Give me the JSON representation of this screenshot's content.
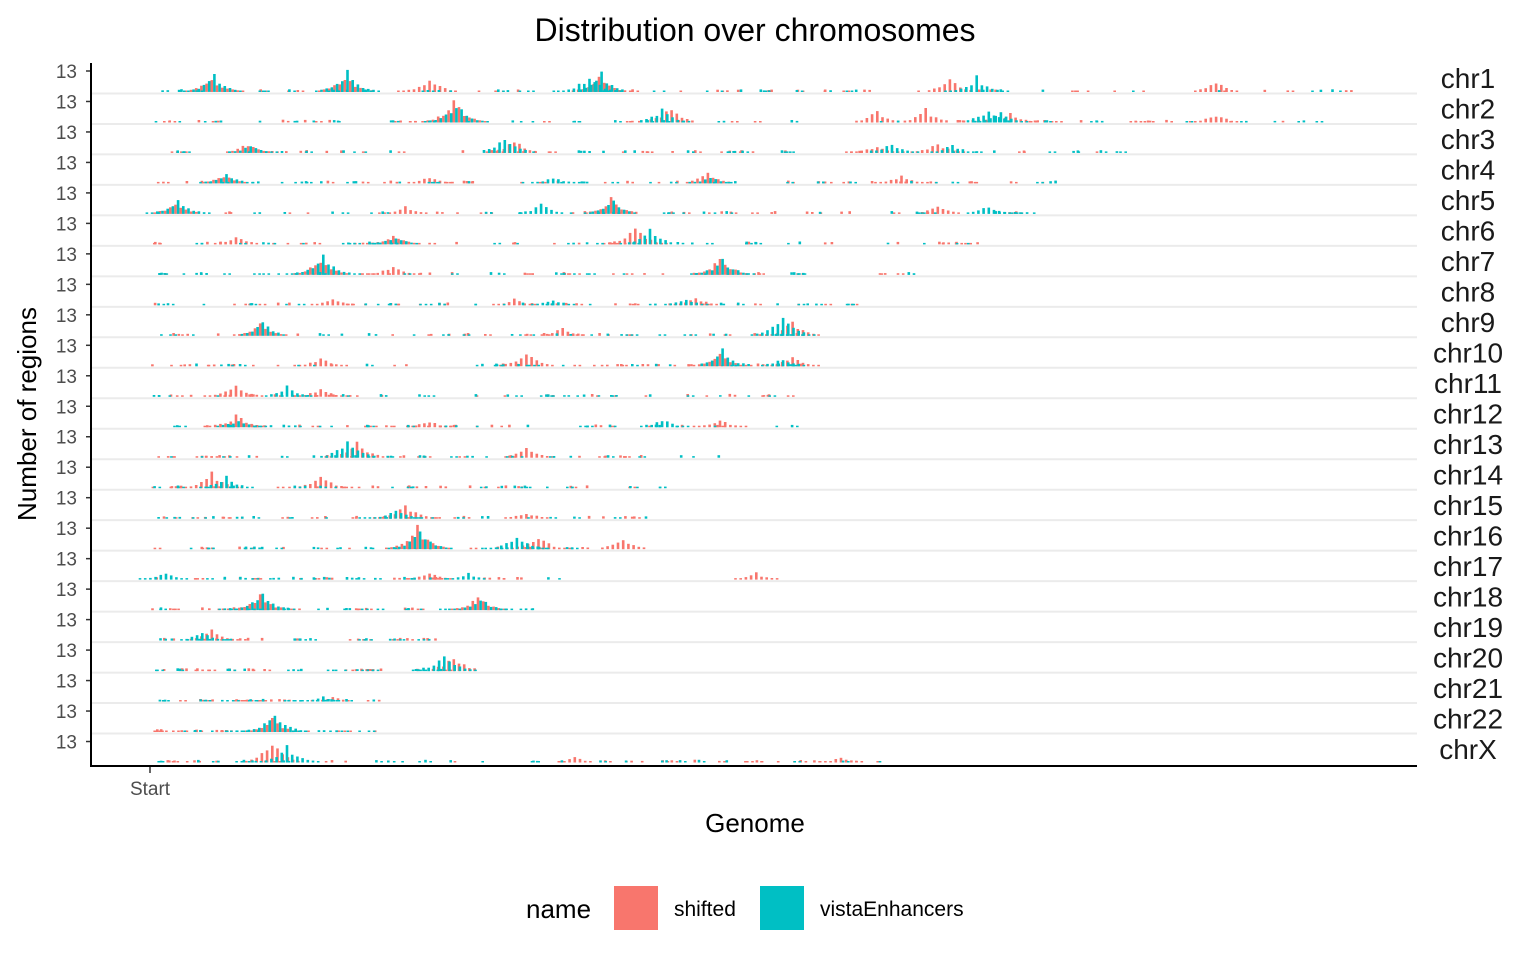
{
  "chart_data": {
    "type": "bar",
    "title": "Distribution over chromosomes",
    "xlabel": "Genome",
    "ylabel": "Number of regions",
    "x_tick_labels": [
      "Start"
    ],
    "y_tick_label": "13",
    "grid": false,
    "facets": [
      "chr1",
      "chr2",
      "chr3",
      "chr4",
      "chr5",
      "chr6",
      "chr7",
      "chr8",
      "chr9",
      "chr10",
      "chr11",
      "chr12",
      "chr13",
      "chr14",
      "chr15",
      "chr16",
      "chr17",
      "chr18",
      "chr19",
      "chr20",
      "chr21",
      "chr22",
      "chrX"
    ],
    "facet_extent": [
      1.0,
      0.98,
      0.8,
      0.76,
      0.73,
      0.69,
      0.64,
      0.58,
      0.55,
      0.54,
      0.55,
      0.54,
      0.47,
      0.43,
      0.41,
      0.38,
      0.34,
      0.33,
      0.24,
      0.26,
      0.19,
      0.2,
      0.62
    ],
    "y_max": 13,
    "legend": {
      "title": "name",
      "position": "bottom",
      "entries": [
        {
          "label": "shifted",
          "color": "#F8766D"
        },
        {
          "label": "vistaEnhancers",
          "color": "#00BFC4"
        }
      ]
    },
    "series": [
      {
        "name": "shifted",
        "color": "#F8766D",
        "peaks": {
          "chr1": [
            [
              0.05,
              9
            ],
            [
              0.16,
              10
            ],
            [
              0.23,
              8
            ],
            [
              0.37,
              9
            ],
            [
              0.66,
              8
            ],
            [
              0.88,
              6
            ]
          ],
          "chr2": [
            [
              0.25,
              13
            ],
            [
              0.43,
              10
            ],
            [
              0.6,
              7
            ],
            [
              0.64,
              8
            ],
            [
              0.71,
              6
            ],
            [
              0.88,
              5
            ]
          ],
          "chr3": [
            [
              0.08,
              6
            ],
            [
              0.3,
              8
            ],
            [
              0.6,
              5
            ],
            [
              0.65,
              6
            ]
          ],
          "chr4": [
            [
              0.06,
              5
            ],
            [
              0.23,
              4
            ],
            [
              0.46,
              7
            ],
            [
              0.62,
              5
            ]
          ],
          "chr5": [
            [
              0.02,
              7
            ],
            [
              0.21,
              5
            ],
            [
              0.38,
              9
            ],
            [
              0.65,
              5
            ]
          ],
          "chr6": [
            [
              0.07,
              5
            ],
            [
              0.2,
              6
            ],
            [
              0.4,
              10
            ]
          ],
          "chr7": [
            [
              0.14,
              10
            ],
            [
              0.2,
              6
            ],
            [
              0.47,
              11
            ]
          ],
          "chr8": [
            [
              0.15,
              4
            ],
            [
              0.3,
              4
            ],
            [
              0.45,
              5
            ]
          ],
          "chr9": [
            [
              0.09,
              7
            ],
            [
              0.34,
              5
            ],
            [
              0.53,
              9
            ]
          ],
          "chr10": [
            [
              0.14,
              5
            ],
            [
              0.31,
              8
            ],
            [
              0.47,
              7
            ],
            [
              0.53,
              6
            ]
          ],
          "chr11": [
            [
              0.07,
              7
            ],
            [
              0.14,
              5
            ]
          ],
          "chr12": [
            [
              0.07,
              8
            ],
            [
              0.23,
              4
            ],
            [
              0.47,
              5
            ]
          ],
          "chr13": [
            [
              0.17,
              10
            ],
            [
              0.31,
              6
            ]
          ],
          "chr14": [
            [
              0.05,
              9
            ],
            [
              0.14,
              8
            ]
          ],
          "chr15": [
            [
              0.21,
              9
            ],
            [
              0.31,
              4
            ]
          ],
          "chr16": [
            [
              0.22,
              13
            ],
            [
              0.32,
              8
            ],
            [
              0.39,
              7
            ]
          ],
          "chr17": [
            [
              0.23,
              4
            ],
            [
              0.5,
              4
            ]
          ],
          "chr18": [
            [
              0.09,
              9
            ],
            [
              0.27,
              8
            ]
          ],
          "chr19": [
            [
              0.05,
              6
            ]
          ],
          "chr20": [
            [
              0.25,
              10
            ]
          ],
          "chr21": [
            [
              0.15,
              3
            ]
          ],
          "chr22": [
            [
              0.1,
              8
            ]
          ],
          "chrX": [
            [
              0.1,
              13
            ],
            [
              0.35,
              3
            ],
            [
              0.57,
              3
            ]
          ]
        }
      },
      {
        "name": "vistaEnhancers",
        "color": "#00BFC4",
        "peaks": {
          "chr1": [
            [
              0.05,
              10
            ],
            [
              0.16,
              12
            ],
            [
              0.36,
              11
            ],
            [
              0.37,
              11
            ],
            [
              0.68,
              9
            ]
          ],
          "chr2": [
            [
              0.25,
              11
            ],
            [
              0.42,
              8
            ],
            [
              0.69,
              9
            ],
            [
              0.7,
              6
            ]
          ],
          "chr3": [
            [
              0.08,
              5
            ],
            [
              0.29,
              10
            ],
            [
              0.61,
              6
            ],
            [
              0.66,
              5
            ]
          ],
          "chr4": [
            [
              0.06,
              7
            ],
            [
              0.33,
              4
            ],
            [
              0.46,
              4
            ]
          ],
          "chr5": [
            [
              0.02,
              9
            ],
            [
              0.32,
              6
            ],
            [
              0.38,
              8
            ],
            [
              0.69,
              5
            ]
          ],
          "chr6": [
            [
              0.2,
              5
            ],
            [
              0.41,
              9
            ]
          ],
          "chr7": [
            [
              0.14,
              13
            ],
            [
              0.47,
              10
            ]
          ],
          "chr8": [
            [
              0.33,
              4
            ],
            [
              0.44,
              4
            ]
          ],
          "chr9": [
            [
              0.09,
              8
            ],
            [
              0.52,
              12
            ]
          ],
          "chr10": [
            [
              0.47,
              10
            ],
            [
              0.52,
              5
            ]
          ],
          "chr11": [
            [
              0.11,
              6
            ]
          ],
          "chr12": [
            [
              0.07,
              5
            ],
            [
              0.42,
              5
            ]
          ],
          "chr13": [
            [
              0.16,
              11
            ]
          ],
          "chr14": [
            [
              0.06,
              7
            ]
          ],
          "chr15": [
            [
              0.2,
              6
            ]
          ],
          "chr16": [
            [
              0.22,
              12
            ],
            [
              0.3,
              9
            ]
          ],
          "chr17": [
            [
              0.01,
              4
            ],
            [
              0.26,
              4
            ]
          ],
          "chr18": [
            [
              0.09,
              11
            ],
            [
              0.27,
              7
            ]
          ],
          "chr19": [
            [
              0.04,
              5
            ]
          ],
          "chr20": [
            [
              0.24,
              11
            ]
          ],
          "chr21": [
            [
              0.14,
              3
            ]
          ],
          "chr22": [
            [
              0.1,
              12
            ]
          ],
          "chrX": [
            [
              0.11,
              10
            ]
          ]
        }
      }
    ]
  }
}
